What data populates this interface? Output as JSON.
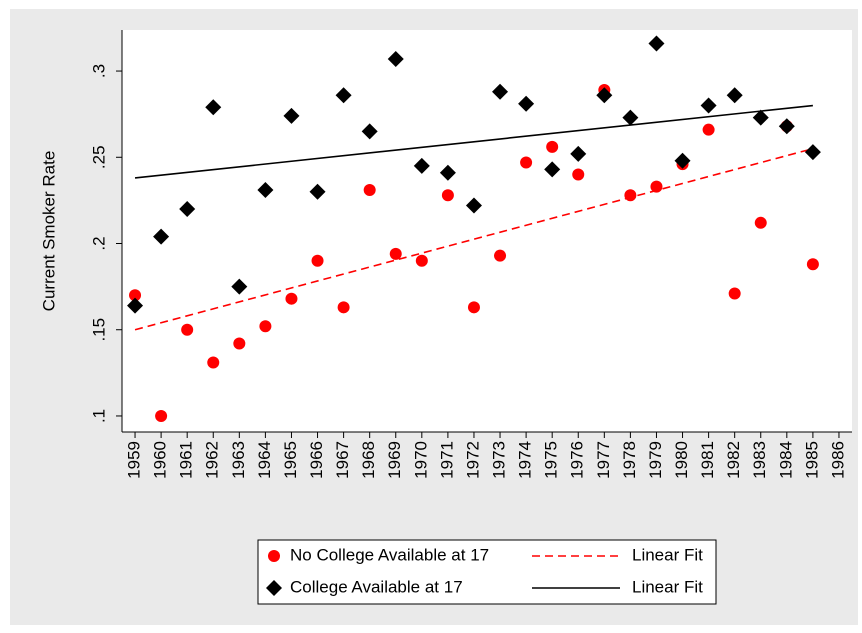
{
  "chart_data": {
    "type": "scatter",
    "y_label": "Current Smoker Rate",
    "x": [
      1959,
      1960,
      1961,
      1962,
      1963,
      1964,
      1965,
      1966,
      1967,
      1968,
      1969,
      1970,
      1971,
      1972,
      1973,
      1974,
      1975,
      1976,
      1977,
      1978,
      1979,
      1980,
      1981,
      1982,
      1983,
      1984,
      1985
    ],
    "series": [
      {
        "name": "No College Available at 17",
        "color": "#ff0000",
        "marker": "circle",
        "values": [
          0.17,
          0.1,
          0.15,
          0.131,
          0.142,
          0.152,
          0.168,
          0.19,
          0.163,
          0.231,
          0.194,
          0.19,
          0.228,
          0.163,
          0.193,
          0.247,
          0.256,
          0.24,
          0.289,
          0.228,
          0.233,
          0.246,
          0.266,
          0.171,
          0.212,
          0.268,
          0.188
        ]
      },
      {
        "name": "Linear Fit",
        "color": "#ff0000",
        "line": "dashed",
        "x": [
          1959,
          1985
        ],
        "values": [
          0.15,
          0.255
        ]
      },
      {
        "name": "College Available at 17",
        "color": "#000000",
        "marker": "diamond",
        "values": [
          0.164,
          0.204,
          0.22,
          0.279,
          0.175,
          0.231,
          0.274,
          0.23,
          0.286,
          0.265,
          0.307,
          0.245,
          0.241,
          0.222,
          0.288,
          0.281,
          0.243,
          0.252,
          0.286,
          0.273,
          0.316,
          0.248,
          0.28,
          0.286,
          0.273,
          0.268,
          0.253
        ]
      },
      {
        "name": "Linear Fit",
        "color": "#000000",
        "line": "solid",
        "x": [
          1959,
          1985
        ],
        "values": [
          0.238,
          0.28
        ]
      }
    ],
    "xlim": [
      1958.5,
      1986.5
    ],
    "xticks": [
      1959,
      1960,
      1961,
      1962,
      1963,
      1964,
      1965,
      1966,
      1967,
      1968,
      1969,
      1970,
      1971,
      1972,
      1973,
      1974,
      1975,
      1976,
      1977,
      1978,
      1979,
      1980,
      1981,
      1982,
      1983,
      1984,
      1985,
      1986
    ],
    "ylim": [
      0.0907,
      0.3238
    ],
    "yticks": [
      {
        "value": 0.1,
        "label": ".1"
      },
      {
        "value": 0.15,
        "label": ".15"
      },
      {
        "value": 0.2,
        "label": ".2"
      },
      {
        "value": 0.25,
        "label": ".25"
      },
      {
        "value": 0.3,
        "label": ".3"
      }
    ]
  }
}
